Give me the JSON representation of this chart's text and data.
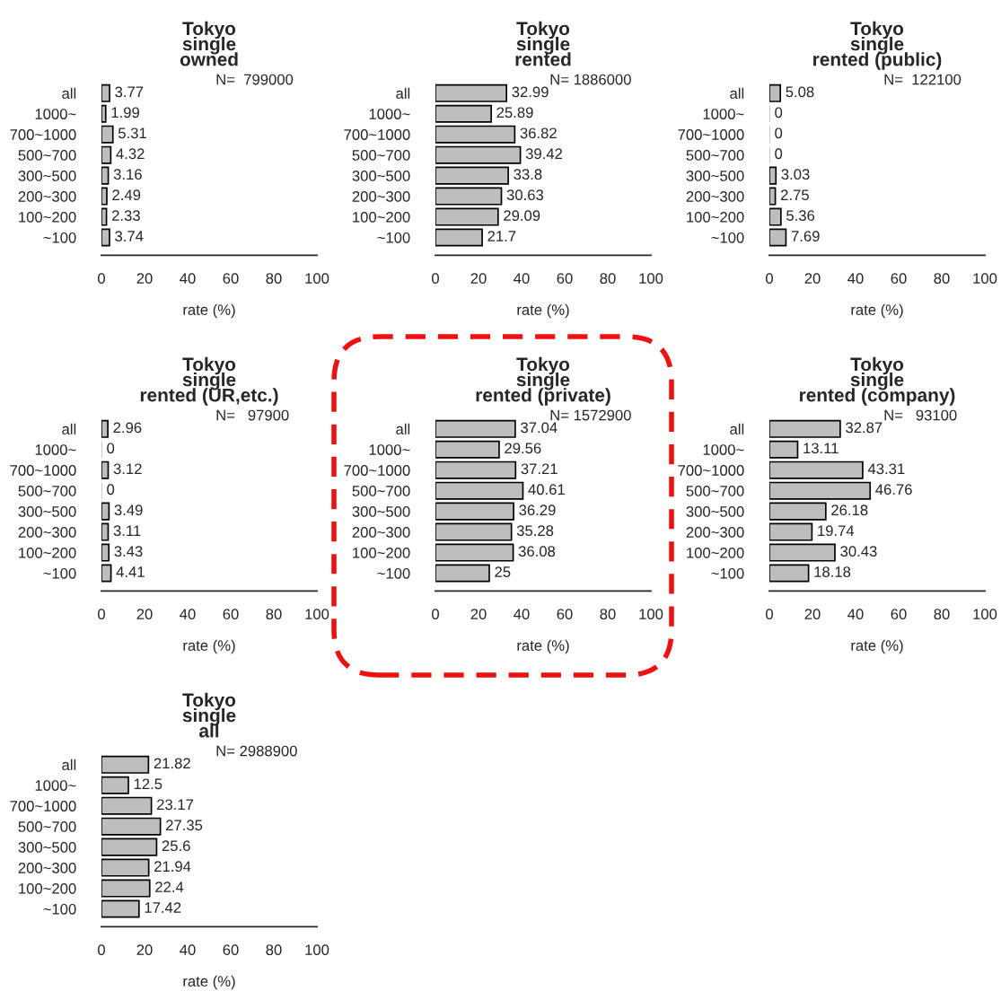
{
  "chart_data": [
    {
      "type": "bar",
      "orientation": "horizontal",
      "title": "Tokyo\nsingle\nowned",
      "xlabel": "rate (%)",
      "categories": [
        "all",
        "1000~",
        "700~1000",
        "500~700",
        "300~500",
        "200~300",
        "100~200",
        "~100"
      ],
      "values": [
        3.77,
        1.99,
        5.31,
        4.32,
        3.16,
        2.49,
        2.33,
        3.74
      ],
      "color": "#bebebe",
      "xlim": [
        0,
        100
      ],
      "xticks": [
        0,
        20,
        40,
        60,
        80,
        100
      ],
      "data_labels": true,
      "grid": false,
      "annotations": [
        "N=  799000"
      ]
    },
    {
      "type": "bar",
      "orientation": "horizontal",
      "title": "Tokyo\nsingle\nrented",
      "xlabel": "rate (%)",
      "categories": [
        "all",
        "1000~",
        "700~1000",
        "500~700",
        "300~500",
        "200~300",
        "100~200",
        "~100"
      ],
      "values": [
        32.99,
        25.89,
        36.82,
        39.42,
        33.8,
        30.63,
        29.09,
        21.7
      ],
      "color": "#bebebe",
      "xlim": [
        0,
        100
      ],
      "xticks": [
        0,
        20,
        40,
        60,
        80,
        100
      ],
      "data_labels": true,
      "grid": false,
      "annotations": [
        "N= 1886000"
      ]
    },
    {
      "type": "bar",
      "orientation": "horizontal",
      "title": "Tokyo\nsingle\nrented (public)",
      "xlabel": "rate (%)",
      "categories": [
        "all",
        "1000~",
        "700~1000",
        "500~700",
        "300~500",
        "200~300",
        "100~200",
        "~100"
      ],
      "values": [
        5.08,
        0,
        0,
        0,
        3.03,
        2.75,
        5.36,
        7.69
      ],
      "color": "#bebebe",
      "xlim": [
        0,
        100
      ],
      "xticks": [
        0,
        20,
        40,
        60,
        80,
        100
      ],
      "data_labels": true,
      "grid": false,
      "annotations": [
        "N=  122100"
      ]
    },
    {
      "type": "bar",
      "orientation": "horizontal",
      "title": "Tokyo\nsingle\nrented (UR,etc.)",
      "xlabel": "rate (%)",
      "categories": [
        "all",
        "1000~",
        "700~1000",
        "500~700",
        "300~500",
        "200~300",
        "100~200",
        "~100"
      ],
      "values": [
        2.96,
        0,
        3.12,
        0,
        3.49,
        3.11,
        3.43,
        4.41
      ],
      "color": "#bebebe",
      "xlim": [
        0,
        100
      ],
      "xticks": [
        0,
        20,
        40,
        60,
        80,
        100
      ],
      "data_labels": true,
      "grid": false,
      "annotations": [
        "N=   97900"
      ]
    },
    {
      "type": "bar",
      "orientation": "horizontal",
      "title": "Tokyo\nsingle\nrented (private)",
      "xlabel": "rate (%)",
      "categories": [
        "all",
        "1000~",
        "700~1000",
        "500~700",
        "300~500",
        "200~300",
        "100~200",
        "~100"
      ],
      "values": [
        37.04,
        29.56,
        37.21,
        40.61,
        36.29,
        35.28,
        36.08,
        25
      ],
      "color": "#bebebe",
      "xlim": [
        0,
        100
      ],
      "xticks": [
        0,
        20,
        40,
        60,
        80,
        100
      ],
      "data_labels": true,
      "grid": false,
      "annotations": [
        "N= 1572900"
      ]
    },
    {
      "type": "bar",
      "orientation": "horizontal",
      "title": "Tokyo\nsingle\nrented (company)",
      "xlabel": "rate (%)",
      "categories": [
        "all",
        "1000~",
        "700~1000",
        "500~700",
        "300~500",
        "200~300",
        "100~200",
        "~100"
      ],
      "values": [
        32.87,
        13.11,
        43.31,
        46.76,
        26.18,
        19.74,
        30.43,
        18.18
      ],
      "color": "#bebebe",
      "xlim": [
        0,
        100
      ],
      "xticks": [
        0,
        20,
        40,
        60,
        80,
        100
      ],
      "data_labels": true,
      "grid": false,
      "annotations": [
        "N=   93100"
      ]
    },
    {
      "type": "bar",
      "orientation": "horizontal",
      "title": "Tokyo\nsingle\nall",
      "xlabel": "rate (%)",
      "categories": [
        "all",
        "1000~",
        "700~1000",
        "500~700",
        "300~500",
        "200~300",
        "100~200",
        "~100"
      ],
      "values": [
        21.82,
        12.5,
        23.17,
        27.35,
        25.6,
        21.94,
        22.4,
        17.42
      ],
      "color": "#bebebe",
      "xlim": [
        0,
        100
      ],
      "xticks": [
        0,
        20,
        40,
        60,
        80,
        100
      ],
      "data_labels": true,
      "grid": false,
      "annotations": [
        "N= 2988900"
      ]
    }
  ]
}
